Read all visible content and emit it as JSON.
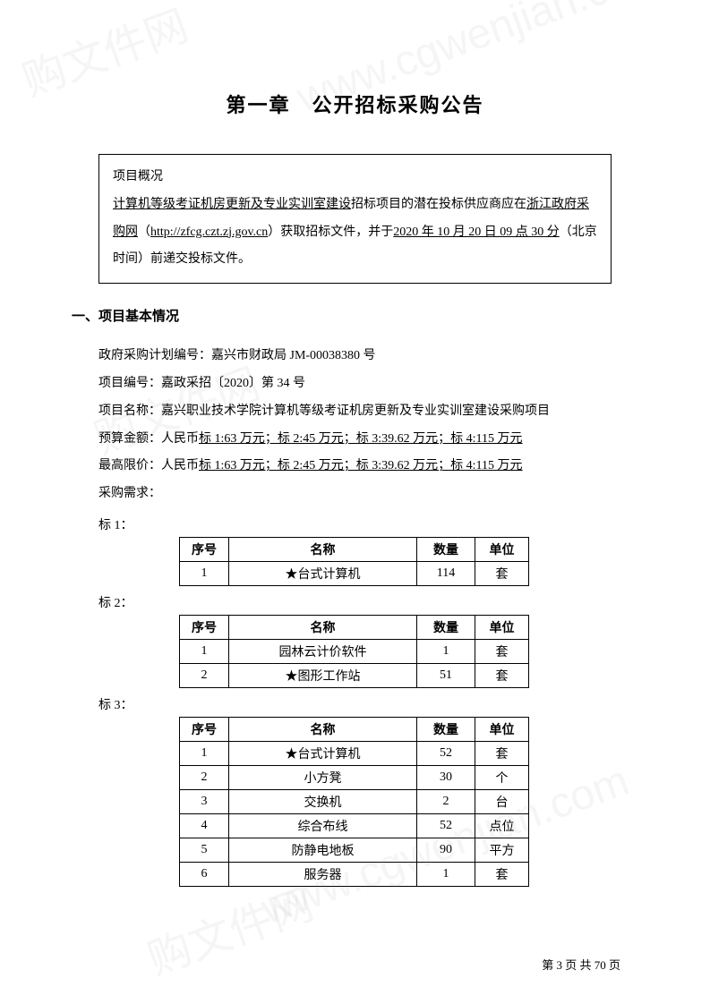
{
  "chapter_title": "第一章　公开招标采购公告",
  "summary": {
    "heading": "项目概况",
    "line1_prefix": "计算机等级考证机房更新及专业实训室建设",
    "line1_mid": "招标项目的潜在投标供应商应在",
    "line1_org_prefix": "浙江政府采购网",
    "line1_url": "http://zfcg.czt.zj.gov.cn",
    "line1_after_url": "）获取招标文件，并于",
    "line1_date": "2020 年 10 月 20 日 09 点 30 分",
    "line1_tz": "（北京时间）前递交投标文件。"
  },
  "section1_title": "一、项目基本情况",
  "info": {
    "plan_no_label": "政府采购计划编号：",
    "plan_no": "嘉兴市财政局 JM-00038380 号",
    "proj_no_label": "项目编号：",
    "proj_no": "嘉政采招〔2020〕第 34 号",
    "proj_name_label": "项目名称：",
    "proj_name": "嘉兴职业技术学院计算机等级考证机房更新及专业实训室建设采购项目",
    "budget_label": "预算金额：人民币",
    "budget_value": "标 1:63 万元；标 2:45 万元；标 3:39.62 万元；标 4:115 万元",
    "max_label": "最高限价：人民币",
    "max_value": "标 1:63 万元；标 2:45 万元；标 3:39.62 万元；标 4:115 万元",
    "demand_label": "采购需求："
  },
  "table_headers": {
    "seq": "序号",
    "name": "名称",
    "qty": "数量",
    "unit": "单位"
  },
  "bid1": {
    "label": "标 1：",
    "rows": [
      {
        "seq": "1",
        "name": "★台式计算机",
        "qty": "114",
        "unit": "套"
      }
    ]
  },
  "bid2": {
    "label": "标 2：",
    "rows": [
      {
        "seq": "1",
        "name": "园林云计价软件",
        "qty": "1",
        "unit": "套"
      },
      {
        "seq": "2",
        "name": "★图形工作站",
        "qty": "51",
        "unit": "套"
      }
    ]
  },
  "bid3": {
    "label": "标 3：",
    "rows": [
      {
        "seq": "1",
        "name": "★台式计算机",
        "qty": "52",
        "unit": "套"
      },
      {
        "seq": "2",
        "name": "小方凳",
        "qty": "30",
        "unit": "个"
      },
      {
        "seq": "3",
        "name": "交换机",
        "qty": "2",
        "unit": "台"
      },
      {
        "seq": "4",
        "name": "综合布线",
        "qty": "52",
        "unit": "点位"
      },
      {
        "seq": "5",
        "name": "防静电地板",
        "qty": "90",
        "unit": "平方"
      },
      {
        "seq": "6",
        "name": "服务器",
        "qty": "1",
        "unit": "套"
      }
    ]
  },
  "footer": "第 3 页 共 70 页",
  "watermark_text": "www.cgwenjian.com",
  "watermark_short": "购文件网"
}
